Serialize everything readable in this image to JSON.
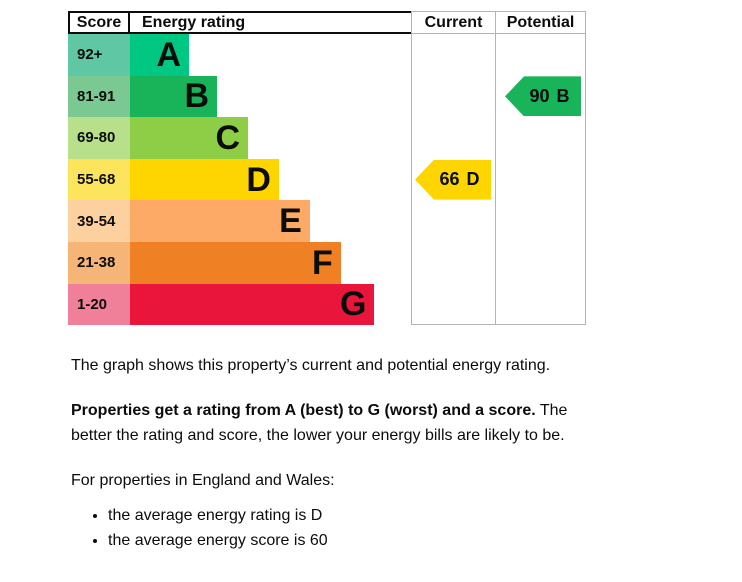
{
  "chart_data": {
    "type": "bar",
    "subtype": "epc-energy-rating-graph",
    "orientation": "horizontal",
    "columns": [
      "Score",
      "Energy rating",
      "Current",
      "Potential"
    ],
    "bands": [
      {
        "score_range": "92+",
        "letter": "A",
        "bar_length_pct": 21,
        "bar_color": "#00c781",
        "score_cell_color": "#5fc7a3"
      },
      {
        "score_range": "81-91",
        "letter": "B",
        "bar_length_pct": 31,
        "bar_color": "#19b459",
        "score_cell_color": "#7ac993"
      },
      {
        "score_range": "69-80",
        "letter": "C",
        "bar_length_pct": 42,
        "bar_color": "#8dce46",
        "score_cell_color": "#b8e08b"
      },
      {
        "score_range": "55-68",
        "letter": "D",
        "bar_length_pct": 53,
        "bar_color": "#ffd500",
        "score_cell_color": "#fce55c"
      },
      {
        "score_range": "39-54",
        "letter": "E",
        "bar_length_pct": 64,
        "bar_color": "#fcaa65",
        "score_cell_color": "#fdd0a0"
      },
      {
        "score_range": "21-38",
        "letter": "F",
        "bar_length_pct": 75,
        "bar_color": "#ef8023",
        "score_cell_color": "#f5b577"
      },
      {
        "score_range": "1-20",
        "letter": "G",
        "bar_length_pct": 87,
        "bar_color": "#e9153b",
        "score_cell_color": "#f0809a"
      }
    ],
    "current": {
      "label": "Current",
      "score": "66",
      "band": "D",
      "band_index": 3,
      "arrow_color": "#ffd500"
    },
    "potential": {
      "label": "Potential",
      "score": "90",
      "band": "B",
      "band_index": 1,
      "arrow_color": "#19b459"
    },
    "grid_color": "#b1b4b6",
    "text_color": "#0b0c0c"
  },
  "description": {
    "intro": "The graph shows this property’s current and potential energy rating.",
    "rating_bold": "Properties get a rating from A (best) to G (worst) and a score.",
    "rating_rest": " The better the rating and score, the lower your energy bills are likely to be.",
    "region_line": "For properties in England and Wales:",
    "bullets": [
      "the average energy rating is D",
      "the average energy score is 60"
    ]
  }
}
